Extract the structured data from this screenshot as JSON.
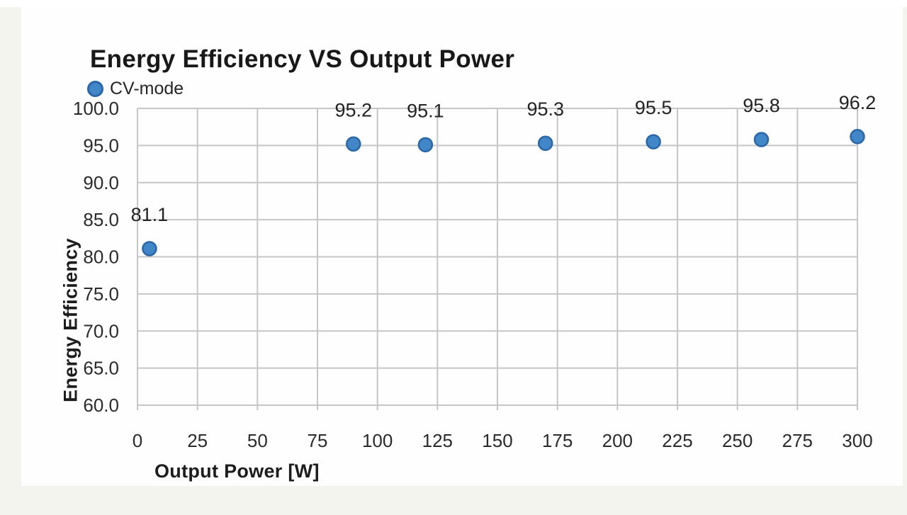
{
  "page": {
    "background": "#f3f4ee",
    "card_background": "#fefefe"
  },
  "chart_data": {
    "type": "scatter",
    "title": "Energy Efficiency VS Output Power",
    "xlabel": "Output Power [W]",
    "ylabel": "Energy Efficiency",
    "xlim": [
      0,
      300
    ],
    "ylim": [
      60,
      100
    ],
    "x_ticks": [
      0,
      25,
      50,
      75,
      100,
      125,
      150,
      175,
      200,
      225,
      250,
      275,
      300
    ],
    "y_ticks": [
      60,
      65,
      70,
      75,
      80,
      85,
      90,
      95,
      100
    ],
    "y_tick_decimals": 1,
    "grid": true,
    "legend_position": "top-left",
    "series": [
      {
        "name": "CV-mode",
        "marker": "circle",
        "marker_fill": "#4186c7",
        "marker_stroke": "#2a66a8",
        "points": [
          {
            "x": 5,
            "y": 81.1,
            "label": "81.1"
          },
          {
            "x": 90,
            "y": 95.2,
            "label": "95.2"
          },
          {
            "x": 120,
            "y": 95.1,
            "label": "95.1"
          },
          {
            "x": 170,
            "y": 95.3,
            "label": "95.3"
          },
          {
            "x": 215,
            "y": 95.5,
            "label": "95.5"
          },
          {
            "x": 260,
            "y": 95.8,
            "label": "95.8"
          },
          {
            "x": 300,
            "y": 96.2,
            "label": "96.2"
          }
        ]
      }
    ],
    "colors": {
      "grid": "#c6c6c6",
      "text": "#262626",
      "title": "#181818"
    }
  }
}
